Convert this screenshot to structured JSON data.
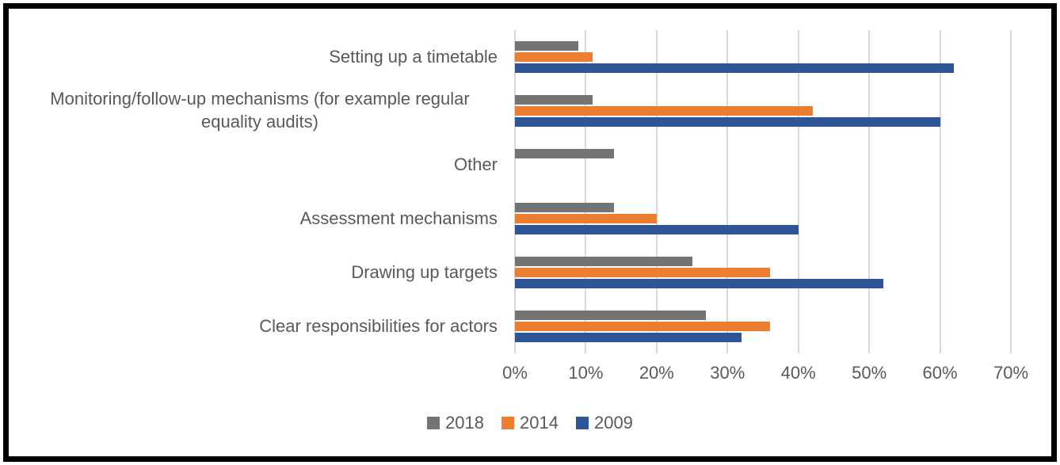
{
  "chart_data": {
    "type": "bar",
    "orientation": "horizontal",
    "title": "",
    "categories": [
      "Setting up a timetable",
      "Monitoring/follow-up mechanisms (for example regular equality audits)",
      "Other",
      "Assessment mechanisms",
      "Drawing up targets",
      "Clear responsibilities for actors"
    ],
    "series": [
      {
        "name": "2018",
        "color": "#747474",
        "values": [
          9,
          11,
          14,
          14,
          25,
          27
        ]
      },
      {
        "name": "2014",
        "color": "#ED7D31",
        "values": [
          11,
          42,
          0,
          20,
          36,
          36
        ]
      },
      {
        "name": "2009",
        "color": "#2F5597",
        "values": [
          62,
          60,
          0,
          40,
          52,
          32
        ]
      }
    ],
    "x_axis": {
      "min": 0,
      "max": 70,
      "tick_step": 10,
      "tick_labels": [
        "0%",
        "10%",
        "20%",
        "30%",
        "40%",
        "50%",
        "60%",
        "70%"
      ],
      "unit": "%",
      "gridlines": true,
      "gridline_color": "#d9d9d9"
    },
    "legend": {
      "position": "bottom",
      "entries": [
        "2018",
        "2014",
        "2009"
      ]
    }
  },
  "frame": {
    "border_color": "#000000"
  },
  "text_color": "#595959"
}
